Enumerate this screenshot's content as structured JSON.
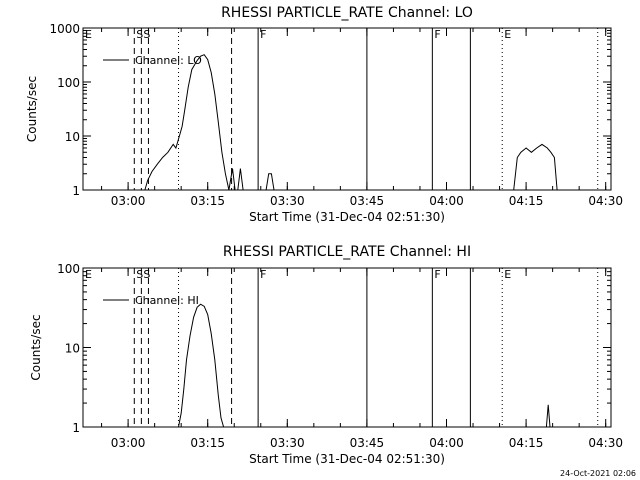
{
  "chart_data": [
    {
      "type": "line",
      "title": "RHESSI PARTICLE_RATE Channel: LO",
      "xlabel": "Start Time (31-Dec-04 02:51:30)",
      "ylabel": "Counts/sec",
      "y_scale": "log",
      "ylim": [
        1,
        1000
      ],
      "xlim": [
        "02:51:30",
        "04:31:00"
      ],
      "x_ticks": [
        "03:00",
        "03:15",
        "03:30",
        "03:45",
        "04:00",
        "04:15",
        "04:30"
      ],
      "y_ticks": [
        "1",
        "10",
        "100",
        "1000"
      ],
      "legend": "top-left",
      "series": [
        {
          "name": "Channel: LO",
          "x": [
            "03:03:10",
            "03:03:40",
            "03:04:30",
            "03:05:30",
            "03:06:30",
            "03:07:30",
            "03:08:30",
            "03:09:00",
            "03:09:40",
            "03:10:10",
            "03:10:40",
            "03:11:20",
            "03:12:00",
            "03:13:00",
            "03:13:40",
            "03:14:20",
            "03:15:00",
            "03:15:40",
            "03:16:20",
            "03:17:00",
            "03:17:40",
            "03:18:20",
            "03:19:00",
            "03:19:40",
            "03:20:10",
            "03:20:40",
            "03:21:10",
            "03:21:40",
            "03:22:20",
            "03:26:00",
            "03:26:30",
            "03:27:00",
            "03:27:30",
            "04:12:40",
            "04:13:20",
            "04:14:00",
            "04:15:00",
            "04:16:00",
            "04:17:00",
            "04:18:00",
            "04:19:00",
            "04:19:40",
            "04:20:20",
            "04:20:50"
          ],
          "y": [
            1,
            1.5,
            2.2,
            3,
            4,
            5,
            7,
            6,
            10,
            15,
            30,
            80,
            170,
            250,
            300,
            320,
            260,
            150,
            60,
            18,
            5,
            2,
            1,
            2.5,
            1,
            1,
            2.5,
            1,
            1,
            1,
            2,
            2,
            1,
            1,
            4,
            5,
            6,
            5,
            6,
            7,
            6,
            5,
            4,
            1
          ]
        }
      ],
      "event_lines": [
        {
          "time": "02:51:30",
          "style": "solid",
          "label": "E"
        },
        {
          "time": "03:01:10",
          "style": "dashed",
          "label": "S"
        },
        {
          "time": "03:02:30",
          "style": "dashed",
          "label": "S"
        },
        {
          "time": "03:03:50",
          "style": "dashed",
          "label": ""
        },
        {
          "time": "03:09:30",
          "style": "dotted",
          "label": ""
        },
        {
          "time": "03:19:30",
          "style": "dashed",
          "label": ""
        },
        {
          "time": "03:24:30",
          "style": "solid",
          "label": "F"
        },
        {
          "time": "03:45:00",
          "style": "solid",
          "label": ""
        },
        {
          "time": "03:57:20",
          "style": "solid",
          "label": "F"
        },
        {
          "time": "04:04:30",
          "style": "solid",
          "label": ""
        },
        {
          "time": "04:10:30",
          "style": "dotted",
          "label": "E"
        },
        {
          "time": "04:28:30",
          "style": "dotted",
          "label": ""
        }
      ]
    },
    {
      "type": "line",
      "title": "RHESSI PARTICLE_RATE Channel: HI",
      "xlabel": "Start Time (31-Dec-04 02:51:30)",
      "ylabel": "Counts/sec",
      "y_scale": "log",
      "ylim": [
        1,
        100
      ],
      "xlim": [
        "02:51:30",
        "04:31:00"
      ],
      "x_ticks": [
        "03:00",
        "03:15",
        "03:30",
        "03:45",
        "04:00",
        "04:15",
        "04:30"
      ],
      "y_ticks": [
        "1",
        "10",
        "100"
      ],
      "legend": "top-left",
      "series": [
        {
          "name": "Channel: HI",
          "x": [
            "03:09:30",
            "03:10:00",
            "03:10:30",
            "03:11:00",
            "03:11:40",
            "03:12:20",
            "03:13:00",
            "03:13:40",
            "03:14:20",
            "03:15:00",
            "03:15:40",
            "03:16:20",
            "03:17:00",
            "03:17:30",
            "03:18:00",
            "04:18:50",
            "04:19:10",
            "04:19:30"
          ],
          "y": [
            1,
            1.5,
            3,
            7,
            14,
            24,
            32,
            35,
            33,
            26,
            15,
            7,
            2.5,
            1.3,
            1,
            1,
            1.9,
            1
          ]
        }
      ],
      "event_lines": [
        {
          "time": "02:51:30",
          "style": "solid",
          "label": "E"
        },
        {
          "time": "03:01:10",
          "style": "dashed",
          "label": "S"
        },
        {
          "time": "03:02:30",
          "style": "dashed",
          "label": "S"
        },
        {
          "time": "03:03:50",
          "style": "dashed",
          "label": ""
        },
        {
          "time": "03:09:30",
          "style": "dotted",
          "label": ""
        },
        {
          "time": "03:19:30",
          "style": "dashed",
          "label": ""
        },
        {
          "time": "03:24:30",
          "style": "solid",
          "label": "F"
        },
        {
          "time": "03:45:00",
          "style": "solid",
          "label": ""
        },
        {
          "time": "03:57:20",
          "style": "solid",
          "label": "F"
        },
        {
          "time": "04:04:30",
          "style": "solid",
          "label": ""
        },
        {
          "time": "04:10:30",
          "style": "dotted",
          "label": "E"
        },
        {
          "time": "04:28:30",
          "style": "dotted",
          "label": ""
        }
      ]
    }
  ],
  "footer": {
    "timestamp": "24-Oct-2021 02:06"
  }
}
